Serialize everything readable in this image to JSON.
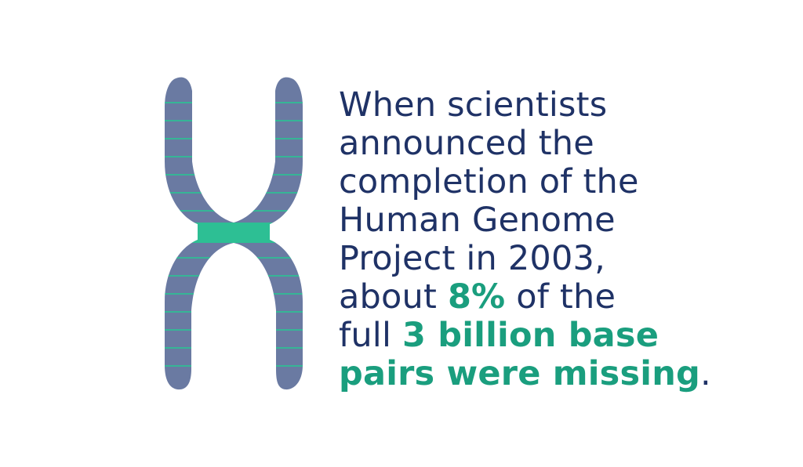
{
  "colors": {
    "background": "#ffffff",
    "text_primary": "#1f3266",
    "text_highlight": "#1a9e7e",
    "chromosome_body": "#6a7aa2",
    "chromosome_band": "#2dbf94"
  },
  "graphic": {
    "icon": "chromosome-icon"
  },
  "fact": {
    "line1": "When scientists",
    "line2": "announced the",
    "line3": "completion of the",
    "line4": "Human Genome",
    "line5": "Project in 2003,",
    "line6_prefix": "about ",
    "line6_highlight": "8%",
    "line6_suffix": " of the",
    "line7_prefix": "full ",
    "line7_highlight": "3 billion base",
    "line8_highlight": "pairs were missing",
    "line8_suffix": "."
  }
}
